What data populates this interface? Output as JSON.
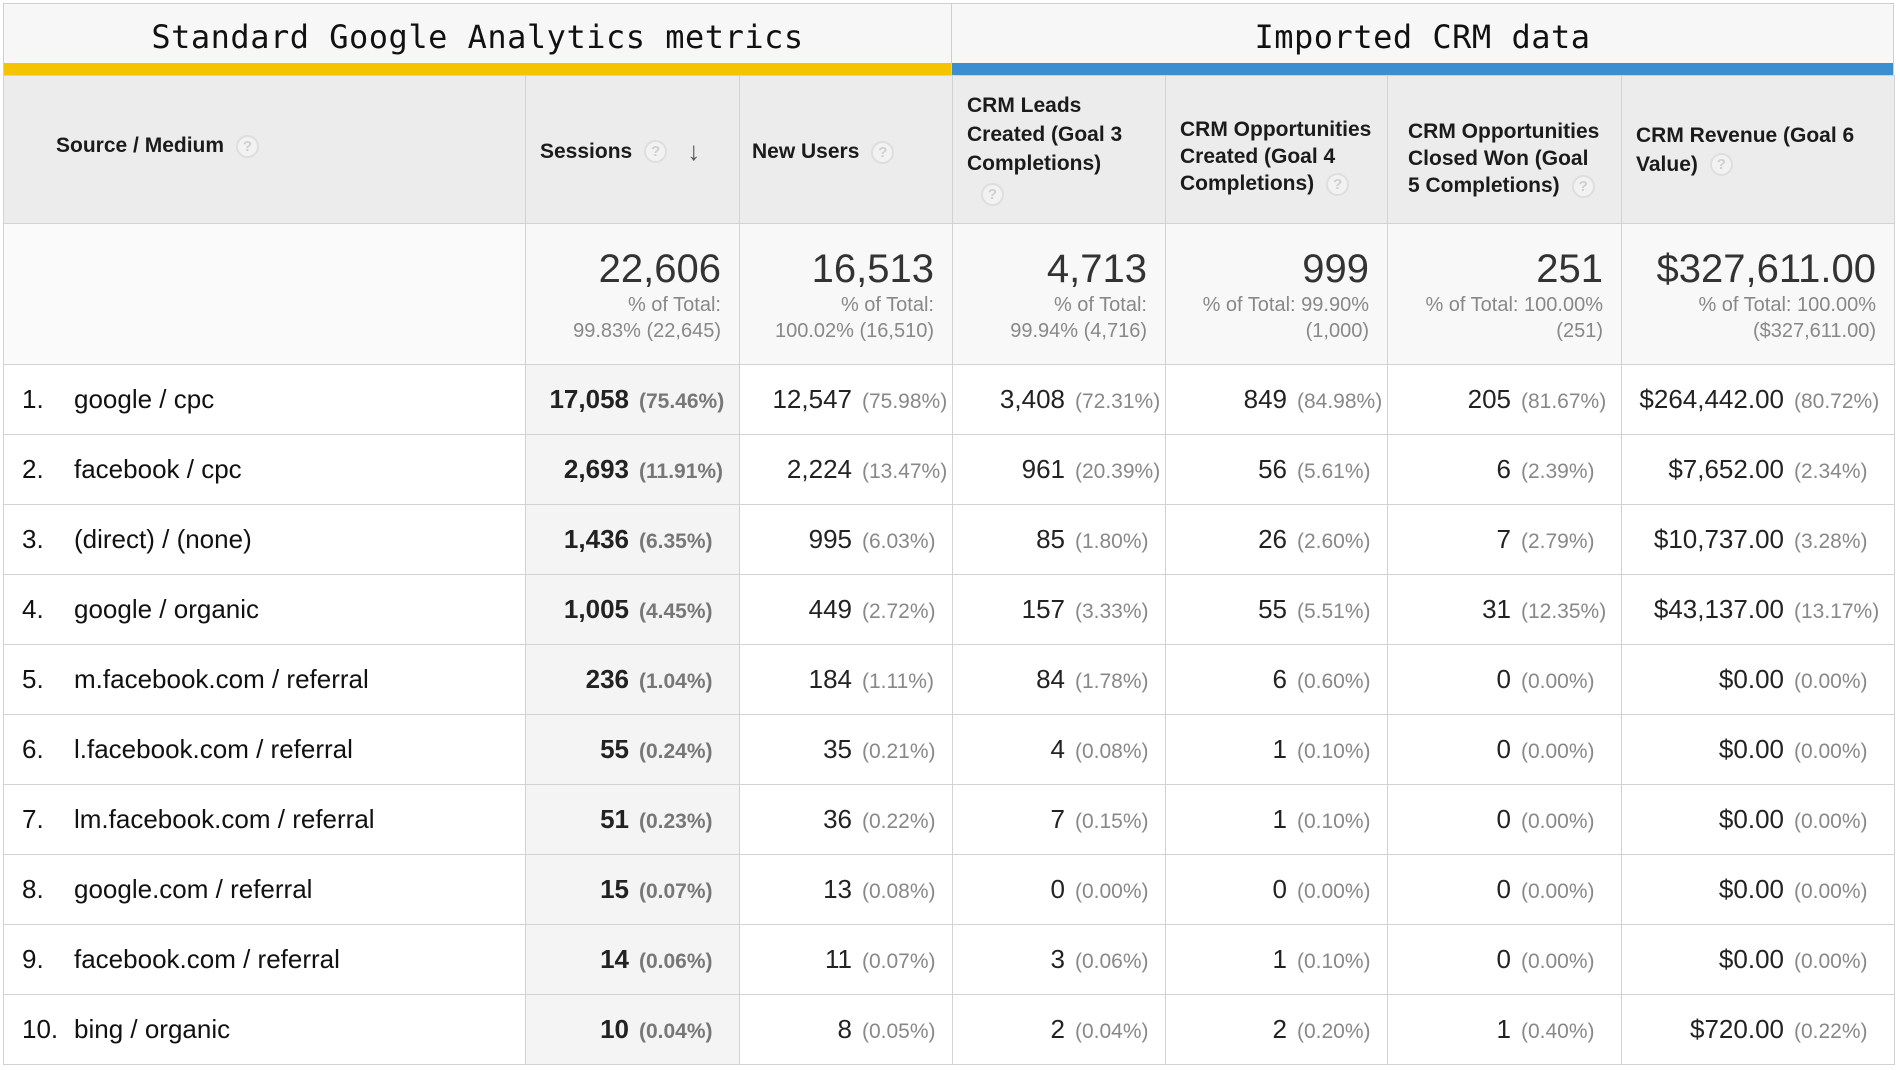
{
  "groups": {
    "ga": "Standard Google Analytics metrics",
    "crm": "Imported CRM data",
    "ga_color": "#f5c400",
    "crm_color": "#3b8fd0"
  },
  "columns": {
    "source": "Source / Medium",
    "sessions": "Sessions",
    "new_users": "New Users",
    "crm_leads": "CRM Leads Created (Goal 3 Completions)",
    "crm_opps": "CRM Opportunities Created (Goal 4 Completions)",
    "crm_won": "CRM Opportunities Closed Won (Goal 5 Completions)",
    "crm_revenue": "CRM Revenue (Goal 6 Value)"
  },
  "help_icon": "?",
  "sort_icon": "arrow-down-icon",
  "totals": {
    "sessions": {
      "value": "22,606",
      "line1": "% of Total:",
      "line2": "99.83% (22,645)"
    },
    "new_users": {
      "value": "16,513",
      "line1": "% of Total:",
      "line2": "100.02% (16,510)"
    },
    "crm_leads": {
      "value": "4,713",
      "line1": "% of Total:",
      "line2": "99.94% (4,716)"
    },
    "crm_opps": {
      "value": "999",
      "line1": "% of Total: 99.90%",
      "line2": "(1,000)"
    },
    "crm_won": {
      "value": "251",
      "line1": "% of Total: 100.00%",
      "line2": "(251)"
    },
    "crm_revenue": {
      "value": "$327,611.00",
      "line1": "% of Total: 100.00%",
      "line2": "($327,611.00)"
    }
  },
  "rows": [
    {
      "num": "1.",
      "source": "google / cpc",
      "sessions": "17,058",
      "sessions_pct": "(75.46%)",
      "new_users": "12,547",
      "new_users_pct": "(75.98%)",
      "leads": "3,408",
      "leads_pct": "(72.31%)",
      "opps": "849",
      "opps_pct": "(84.98%)",
      "won": "205",
      "won_pct": "(81.67%)",
      "revenue": "$264,442.00",
      "revenue_pct": "(80.72%)"
    },
    {
      "num": "2.",
      "source": "facebook / cpc",
      "sessions": "2,693",
      "sessions_pct": "(11.91%)",
      "new_users": "2,224",
      "new_users_pct": "(13.47%)",
      "leads": "961",
      "leads_pct": "(20.39%)",
      "opps": "56",
      "opps_pct": "(5.61%)",
      "won": "6",
      "won_pct": "(2.39%)",
      "revenue": "$7,652.00",
      "revenue_pct": "(2.34%)"
    },
    {
      "num": "3.",
      "source": "(direct) / (none)",
      "sessions": "1,436",
      "sessions_pct": "(6.35%)",
      "new_users": "995",
      "new_users_pct": "(6.03%)",
      "leads": "85",
      "leads_pct": "(1.80%)",
      "opps": "26",
      "opps_pct": "(2.60%)",
      "won": "7",
      "won_pct": "(2.79%)",
      "revenue": "$10,737.00",
      "revenue_pct": "(3.28%)"
    },
    {
      "num": "4.",
      "source": "google / organic",
      "sessions": "1,005",
      "sessions_pct": "(4.45%)",
      "new_users": "449",
      "new_users_pct": "(2.72%)",
      "leads": "157",
      "leads_pct": "(3.33%)",
      "opps": "55",
      "opps_pct": "(5.51%)",
      "won": "31",
      "won_pct": "(12.35%)",
      "revenue": "$43,137.00",
      "revenue_pct": "(13.17%)"
    },
    {
      "num": "5.",
      "source": "m.facebook.com / referral",
      "sessions": "236",
      "sessions_pct": "(1.04%)",
      "new_users": "184",
      "new_users_pct": "(1.11%)",
      "leads": "84",
      "leads_pct": "(1.78%)",
      "opps": "6",
      "opps_pct": "(0.60%)",
      "won": "0",
      "won_pct": "(0.00%)",
      "revenue": "$0.00",
      "revenue_pct": "(0.00%)"
    },
    {
      "num": "6.",
      "source": "l.facebook.com / referral",
      "sessions": "55",
      "sessions_pct": "(0.24%)",
      "new_users": "35",
      "new_users_pct": "(0.21%)",
      "leads": "4",
      "leads_pct": "(0.08%)",
      "opps": "1",
      "opps_pct": "(0.10%)",
      "won": "0",
      "won_pct": "(0.00%)",
      "revenue": "$0.00",
      "revenue_pct": "(0.00%)"
    },
    {
      "num": "7.",
      "source": "lm.facebook.com / referral",
      "sessions": "51",
      "sessions_pct": "(0.23%)",
      "new_users": "36",
      "new_users_pct": "(0.22%)",
      "leads": "7",
      "leads_pct": "(0.15%)",
      "opps": "1",
      "opps_pct": "(0.10%)",
      "won": "0",
      "won_pct": "(0.00%)",
      "revenue": "$0.00",
      "revenue_pct": "(0.00%)"
    },
    {
      "num": "8.",
      "source": "google.com / referral",
      "sessions": "15",
      "sessions_pct": "(0.07%)",
      "new_users": "13",
      "new_users_pct": "(0.08%)",
      "leads": "0",
      "leads_pct": "(0.00%)",
      "opps": "0",
      "opps_pct": "(0.00%)",
      "won": "0",
      "won_pct": "(0.00%)",
      "revenue": "$0.00",
      "revenue_pct": "(0.00%)"
    },
    {
      "num": "9.",
      "source": "facebook.com / referral",
      "sessions": "14",
      "sessions_pct": "(0.06%)",
      "new_users": "11",
      "new_users_pct": "(0.07%)",
      "leads": "3",
      "leads_pct": "(0.06%)",
      "opps": "1",
      "opps_pct": "(0.10%)",
      "won": "0",
      "won_pct": "(0.00%)",
      "revenue": "$0.00",
      "revenue_pct": "(0.00%)"
    },
    {
      "num": "10.",
      "source": "bing / organic",
      "sessions": "10",
      "sessions_pct": "(0.04%)",
      "new_users": "8",
      "new_users_pct": "(0.05%)",
      "leads": "2",
      "leads_pct": "(0.04%)",
      "opps": "2",
      "opps_pct": "(0.20%)",
      "won": "1",
      "won_pct": "(0.40%)",
      "revenue": "$720.00",
      "revenue_pct": "(0.22%)"
    }
  ]
}
